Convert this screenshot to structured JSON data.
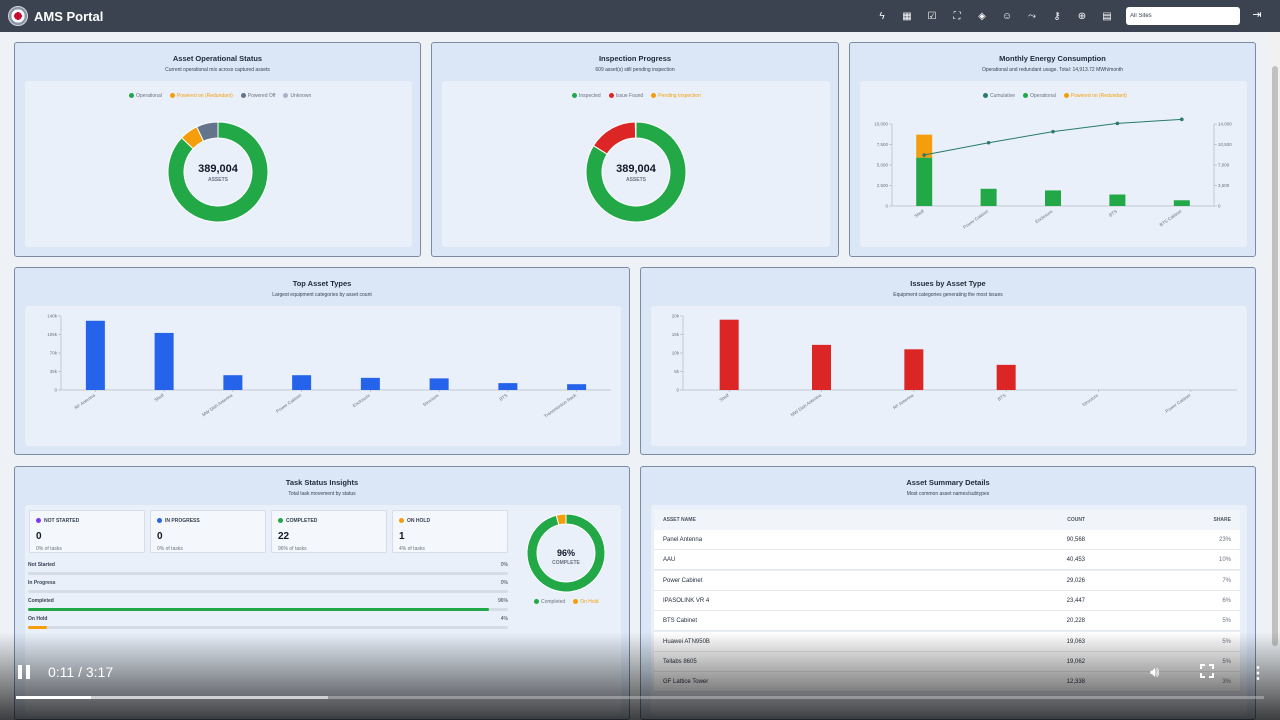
{
  "app": {
    "title": "AMS Portal",
    "site_select_value": "All Sites"
  },
  "nav_icons": [
    "bolt-icon",
    "grid-icon",
    "clipboard-check-icon",
    "map-icon",
    "cube-icon",
    "users-icon",
    "route-icon",
    "key-icon",
    "globe-icon",
    "calendar-icon",
    "colorful-app-icon"
  ],
  "operational": {
    "title": "Asset Operational Status",
    "subtitle": "Current operational mix across captured assets",
    "legend": [
      {
        "label": "Operational",
        "color": "#22a846"
      },
      {
        "label": "Powered on (Redundant)",
        "color": "#f59e0b"
      },
      {
        "label": "Powered Off",
        "color": "#64748b"
      },
      {
        "label": "Unknown",
        "color": "#a8b3c7"
      }
    ],
    "total": "389,004",
    "total_label": "ASSETS",
    "chart_data": {
      "type": "pie",
      "labels": [
        "Operational",
        "Powered on (Redundant)",
        "Powered Off",
        "Unknown"
      ],
      "values": [
        87,
        6,
        7,
        0
      ]
    }
  },
  "inspection": {
    "title": "Inspection Progress",
    "subtitle": "609 asset(s) still pending inspection",
    "legend": [
      {
        "label": "Inspected",
        "color": "#22a846"
      },
      {
        "label": "Issue Found",
        "color": "#dc2626"
      },
      {
        "label": "Pending Inspection",
        "color": "#f59e0b"
      }
    ],
    "total": "389,004",
    "total_label": "ASSETS",
    "chart_data": {
      "type": "pie",
      "labels": [
        "Inspected",
        "Issue Found",
        "Pending Inspection"
      ],
      "values": [
        84,
        16,
        0.2
      ]
    }
  },
  "energy": {
    "title": "Monthly Energy Consumption",
    "subtitle": "Operational and redundant usage. Total: 14,913.72 MWh/month",
    "legend": [
      {
        "label": "Cumulative",
        "color": "#2a7a6a"
      },
      {
        "label": "Operational",
        "color": "#22a846"
      },
      {
        "label": "Powered on (Redundant)",
        "color": "#f59e0b"
      }
    ],
    "chart_data": {
      "type": "bar",
      "categories": [
        "Shelf",
        "Power Cabinet",
        "Enclosure",
        "BTS",
        "BTS Cabinet"
      ],
      "series": [
        {
          "name": "Operational",
          "values": [
            5900,
            2100,
            1900,
            1400,
            700
          ]
        },
        {
          "name": "Powered on (Redundant)",
          "values": [
            2800,
            0,
            0,
            0,
            0
          ]
        },
        {
          "name": "Cumulative",
          "values": [
            8700,
            10800,
            12700,
            14100,
            14800
          ]
        }
      ],
      "left_ticks": [
        "0",
        "2,500",
        "5,000",
        "7,500",
        "10,000"
      ],
      "right_ticks": [
        "0",
        "3,500",
        "7,000",
        "10,500",
        "14,000"
      ],
      "ylim": [
        0,
        10000
      ],
      "y2lim": [
        0,
        14000
      ]
    }
  },
  "top_types": {
    "title": "Top Asset Types",
    "subtitle": "Largest equipment categories by asset count",
    "chart_data": {
      "type": "bar",
      "categories": [
        "RF Antenna",
        "Shelf",
        "MW Dish Antenna",
        "Power Cabinet",
        "Enclosure",
        "Structure",
        "BTS",
        "Transmission Rack"
      ],
      "values": [
        131000,
        108000,
        28000,
        28000,
        23000,
        22000,
        13000,
        11000
      ],
      "ticks": [
        "0",
        "35k",
        "70k",
        "105k",
        "140k"
      ],
      "ylim": [
        0,
        140000
      ],
      "color": "#2563eb"
    }
  },
  "issues": {
    "title": "Issues by Asset Type",
    "subtitle": "Equipment categories generating the most issues",
    "chart_data": {
      "type": "bar",
      "categories": [
        "Shelf",
        "MW Dish Antenna",
        "RF Antenna",
        "BTS",
        "Structure",
        "Power Cabinet"
      ],
      "values": [
        19000,
        12200,
        11000,
        6800,
        0,
        0
      ],
      "ticks": [
        "0",
        "5k",
        "10k",
        "15k",
        "20k"
      ],
      "ylim": [
        0,
        20000
      ],
      "color": "#dc2626"
    }
  },
  "tasks": {
    "title": "Task Status Insights",
    "subtitle": "Total task movement by status",
    "stats": [
      {
        "label": "NOT STARTED",
        "value": "0",
        "sub": "0% of tasks",
        "color": "#7c3aed"
      },
      {
        "label": "IN PROGRESS",
        "value": "0",
        "sub": "0% of tasks",
        "color": "#2563eb"
      },
      {
        "label": "COMPLETED",
        "value": "22",
        "sub": "96% of tasks",
        "color": "#22a846"
      },
      {
        "label": "ON HOLD",
        "value": "1",
        "sub": "4% of tasks",
        "color": "#f59e0b"
      }
    ],
    "progress": [
      {
        "label": "Not Started",
        "pct": "0%",
        "fraction": 0,
        "color": "#7c3aed"
      },
      {
        "label": "In Progress",
        "pct": "0%",
        "fraction": 0,
        "color": "#2563eb"
      },
      {
        "label": "Completed",
        "pct": "96%",
        "fraction": 0.96,
        "color": "#22a846"
      },
      {
        "label": "On Hold",
        "pct": "4%",
        "fraction": 0.04,
        "color": "#f59e0b"
      }
    ],
    "donut_value": "96%",
    "donut_label": "COMPLETE",
    "legend": [
      {
        "label": "Completed",
        "color": "#22a846"
      },
      {
        "label": "On Hold",
        "color": "#f59e0b"
      }
    ],
    "chart_data": {
      "type": "pie",
      "labels": [
        "Completed",
        "On Hold"
      ],
      "values": [
        96,
        4
      ]
    }
  },
  "summary": {
    "title": "Asset Summary Details",
    "subtitle": "Most common asset names/subtypes",
    "headers": [
      "ASSET NAME",
      "COUNT",
      "SHARE"
    ],
    "rows": [
      [
        "Panel Antenna",
        "90,568",
        "23%"
      ],
      [
        "AAU",
        "40,453",
        "10%"
      ],
      [
        "Power Cabinet",
        "29,026",
        "7%"
      ],
      [
        "IPASOLINK VR 4",
        "23,447",
        "6%"
      ],
      [
        "BTS Cabinet",
        "20,228",
        "5%"
      ],
      [
        "Huawei ATN950B",
        "19,063",
        "5%"
      ],
      [
        "Tellabs 8605",
        "19,062",
        "5%"
      ],
      [
        "GF Lattice Tower",
        "12,338",
        "3%"
      ]
    ]
  },
  "video": {
    "time": "0:11 / 3:17",
    "played_fraction": 0.06,
    "buffered_fraction": 0.25
  }
}
